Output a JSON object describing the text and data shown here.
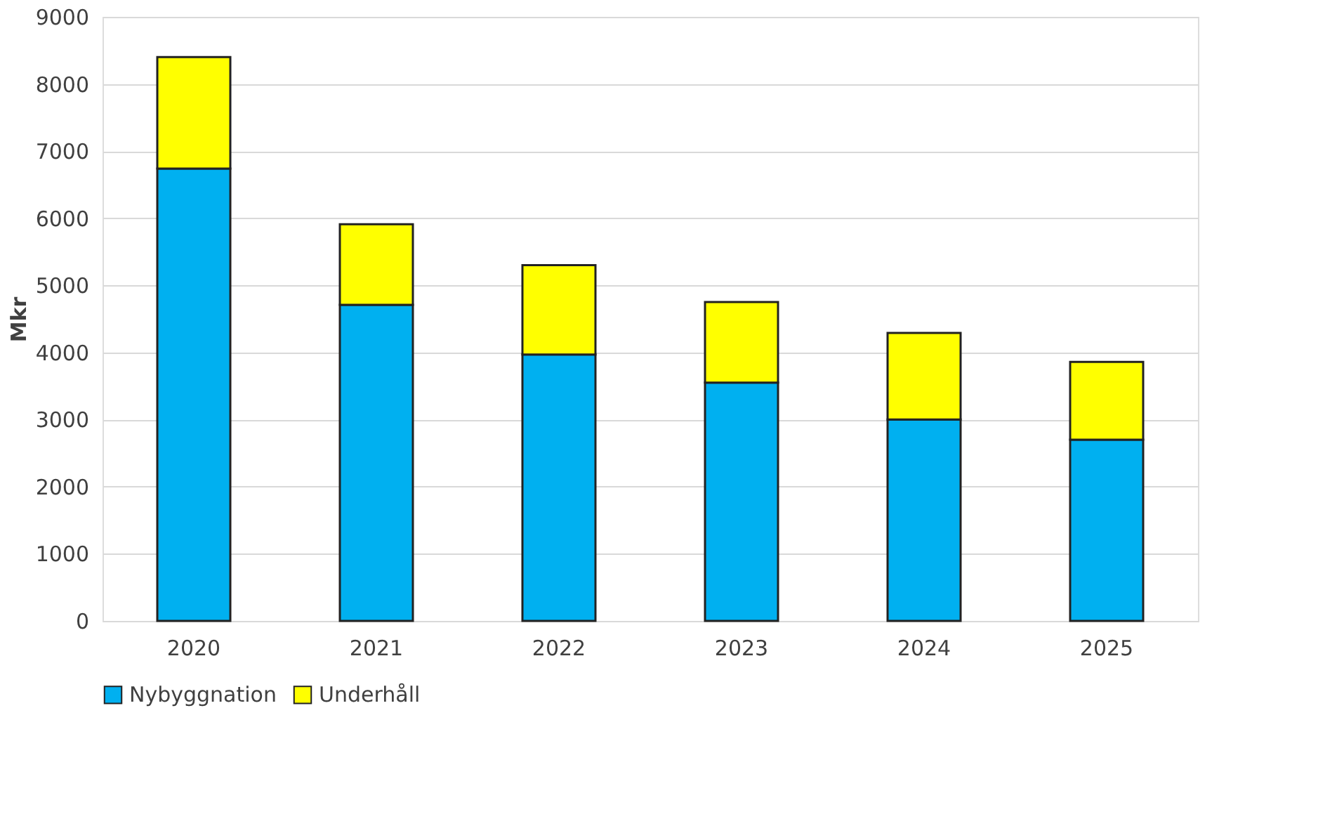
{
  "chart_data": {
    "type": "bar",
    "stacked": true,
    "ylabel": "Mkr",
    "categories": [
      "2020",
      "2021",
      "2022",
      "2023",
      "2024",
      "2025"
    ],
    "series": [
      {
        "name": "Nybyggnation",
        "color": "#00b0f0",
        "values": [
          6740,
          4710,
          3970,
          3550,
          3000,
          2700
        ]
      },
      {
        "name": "Underhåll",
        "color": "#ffff00",
        "values": [
          1660,
          1200,
          1330,
          1200,
          1290,
          1160
        ]
      }
    ],
    "ylim": [
      0,
      9000
    ],
    "yticks": [
      0,
      1000,
      2000,
      3000,
      4000,
      5000,
      6000,
      7000,
      8000,
      9000
    ],
    "grid": "y",
    "legend": "bottom"
  }
}
